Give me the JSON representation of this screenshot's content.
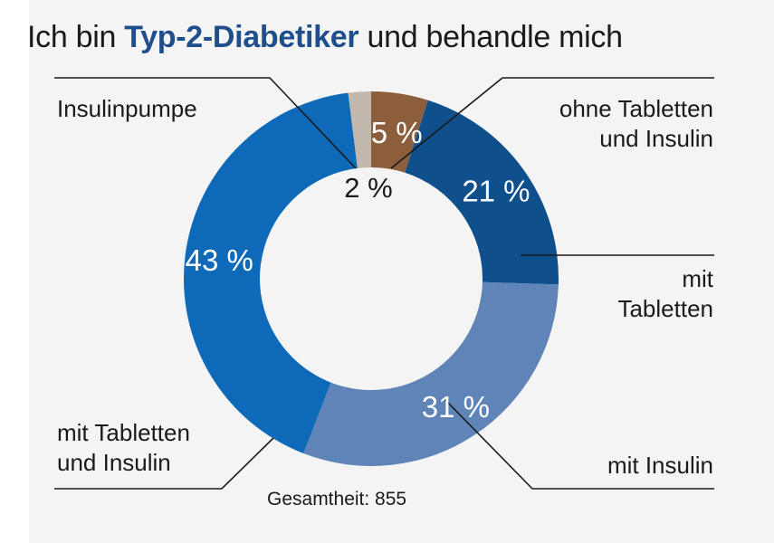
{
  "title": {
    "prefix": "Ich bin",
    "highlight": "Typ-2-Diabetiker",
    "suffix": "und behandle mich"
  },
  "total_label": "Gesamtheit: 855",
  "chart_data": {
    "type": "pie",
    "title": "Ich bin Typ-2-Diabetiker und behandle mich",
    "donut": true,
    "slices": [
      {
        "label": "ohne Tabletten und Insulin",
        "value": 5,
        "value_label": "5 %",
        "color": "#8c5e3c"
      },
      {
        "label": "mit Tabletten",
        "value": 21,
        "value_label": "21 %",
        "color": "#0f4f8c"
      },
      {
        "label": "mit Insulin",
        "value": 31,
        "value_label": "31 %",
        "color": "#5f84b8"
      },
      {
        "label": "mit Tabletten und Insulin",
        "value": 43,
        "value_label": "43 %",
        "color": "#0e6ab8"
      },
      {
        "label": "Insulinpumpe",
        "value": 2,
        "value_label": "2 %",
        "color": "#c2b8ae"
      }
    ]
  }
}
